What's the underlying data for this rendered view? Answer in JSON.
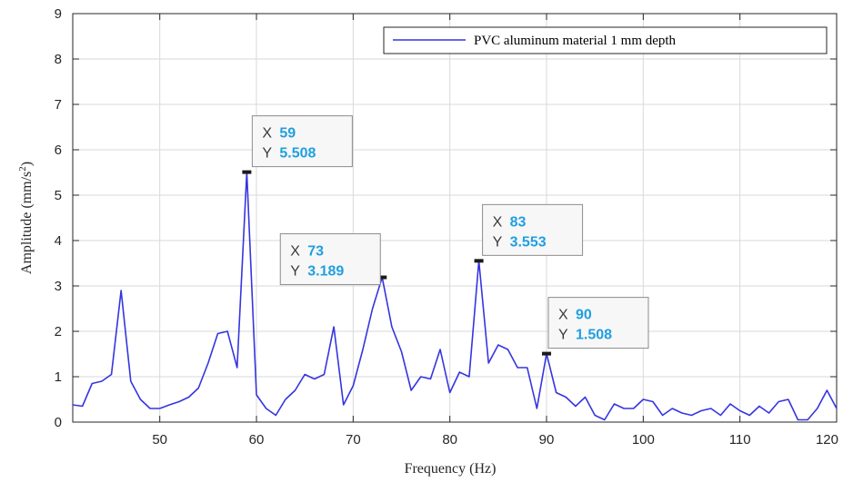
{
  "chart_data": {
    "type": "line",
    "xlabel": "Frequency (Hz)",
    "ylabel": "Amplitude (mm/s",
    "ylabel_sup": "2",
    "ylabel_close": ")",
    "xlim": [
      41,
      120
    ],
    "ylim": [
      0,
      9
    ],
    "xticks": [
      50,
      60,
      70,
      80,
      90,
      100,
      110,
      120
    ],
    "yticks": [
      0,
      1,
      2,
      3,
      4,
      5,
      6,
      7,
      8,
      9
    ],
    "grid": true,
    "legend_position": "top-right",
    "series": [
      {
        "name": "PVC aluminum material 1 mm depth",
        "color": "#3535e0",
        "x": [
          41,
          42,
          43,
          44,
          45,
          46,
          47,
          48,
          49,
          50,
          51,
          52,
          53,
          54,
          55,
          56,
          57,
          58,
          59,
          60,
          61,
          62,
          63,
          64,
          65,
          66,
          67,
          68,
          69,
          70,
          71,
          72,
          73,
          74,
          75,
          76,
          77,
          78,
          79,
          80,
          81,
          82,
          83,
          84,
          85,
          86,
          87,
          88,
          89,
          90,
          91,
          92,
          93,
          94,
          95,
          96,
          97,
          98,
          99,
          100,
          101,
          102,
          103,
          104,
          105,
          106,
          107,
          108,
          109,
          110,
          111,
          112,
          113,
          114,
          115,
          116,
          117,
          118,
          119,
          120
        ],
        "y": [
          0.38,
          0.35,
          0.85,
          0.9,
          1.05,
          2.9,
          0.9,
          0.5,
          0.3,
          0.3,
          0.38,
          0.45,
          0.55,
          0.75,
          1.3,
          1.95,
          2.0,
          1.2,
          5.508,
          0.6,
          0.3,
          0.15,
          0.5,
          0.7,
          1.05,
          0.95,
          1.05,
          2.1,
          0.38,
          0.8,
          1.6,
          2.5,
          3.189,
          2.1,
          1.55,
          0.7,
          1.0,
          0.95,
          1.6,
          0.65,
          1.1,
          1.0,
          3.553,
          1.3,
          1.7,
          1.6,
          1.2,
          1.2,
          0.3,
          1.508,
          0.65,
          0.55,
          0.35,
          0.55,
          0.15,
          0.05,
          0.4,
          0.3,
          0.3,
          0.5,
          0.45,
          0.15,
          0.3,
          0.2,
          0.15,
          0.25,
          0.3,
          0.15,
          0.4,
          0.25,
          0.15,
          0.35,
          0.2,
          0.45,
          0.5,
          0.05,
          0.05,
          0.3,
          0.7,
          0.3
        ]
      }
    ],
    "datatips": [
      {
        "x_label": "X",
        "y_label": "Y",
        "x": 59,
        "y": 5.508,
        "x_text": "59",
        "y_text": "5.508"
      },
      {
        "x_label": "X",
        "y_label": "Y",
        "x": 73,
        "y": 3.189,
        "x_text": "73",
        "y_text": "3.189"
      },
      {
        "x_label": "X",
        "y_label": "Y",
        "x": 83,
        "y": 3.553,
        "x_text": "83",
        "y_text": "3.553"
      },
      {
        "x_label": "X",
        "y_label": "Y",
        "x": 90,
        "y": 1.508,
        "x_text": "90",
        "y_text": "1.508"
      }
    ],
    "datatip_value_color": "#1f9fe0"
  }
}
